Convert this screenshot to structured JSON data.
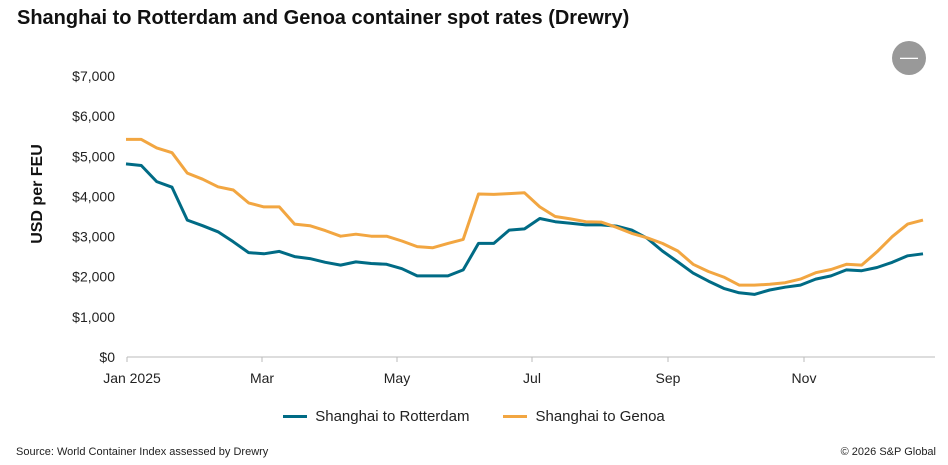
{
  "title": "Shanghai to Rotterdam and Genoa container spot rates (Drewry)",
  "collapse_button": "—",
  "source": "Source: World Container Index assessed by Drewry",
  "copyright": "© 2026 S&P Global",
  "chart_data": {
    "type": "line",
    "title": "Shanghai to Rotterdam and Genoa container spot rates (Drewry)",
    "xlabel": "",
    "ylabel": "USD per FEU",
    "ylim": [
      0,
      7000
    ],
    "yticks": [
      "$0",
      "$1,000",
      "$2,000",
      "$3,000",
      "$4,000",
      "$5,000",
      "$6,000",
      "$7,000"
    ],
    "xticks": [
      "Jan 2025",
      "Mar",
      "May",
      "Jul",
      "Sep",
      "Nov"
    ],
    "legend_position": "bottom",
    "grid": false,
    "series": [
      {
        "name": "Shanghai to Rotterdam",
        "color": "#006b85",
        "values": [
          4810,
          4770,
          4370,
          4230,
          3410,
          3270,
          3120,
          2870,
          2600,
          2570,
          2630,
          2500,
          2450,
          2360,
          2290,
          2370,
          2330,
          2310,
          2200,
          2020,
          2020,
          2020,
          2170,
          2830,
          2830,
          3160,
          3190,
          3450,
          3370,
          3330,
          3290,
          3290,
          3260,
          3160,
          2960,
          2640,
          2370,
          2090,
          1890,
          1710,
          1600,
          1560,
          1670,
          1740,
          1790,
          1940,
          2020,
          2170,
          2150,
          2230,
          2360,
          2520,
          2570
        ]
      },
      {
        "name": "Shanghai to Genoa",
        "color": "#f2a641",
        "values": [
          5420,
          5420,
          5210,
          5090,
          4580,
          4430,
          4240,
          4160,
          3840,
          3740,
          3740,
          3310,
          3270,
          3150,
          3010,
          3060,
          3010,
          3010,
          2890,
          2750,
          2720,
          2830,
          2930,
          4060,
          4050,
          4070,
          4090,
          3740,
          3500,
          3440,
          3370,
          3360,
          3230,
          3080,
          2970,
          2830,
          2640,
          2310,
          2130,
          1990,
          1790,
          1790,
          1810,
          1850,
          1940,
          2100,
          2180,
          2310,
          2290,
          2620,
          3000,
          3310,
          3410
        ]
      }
    ]
  }
}
